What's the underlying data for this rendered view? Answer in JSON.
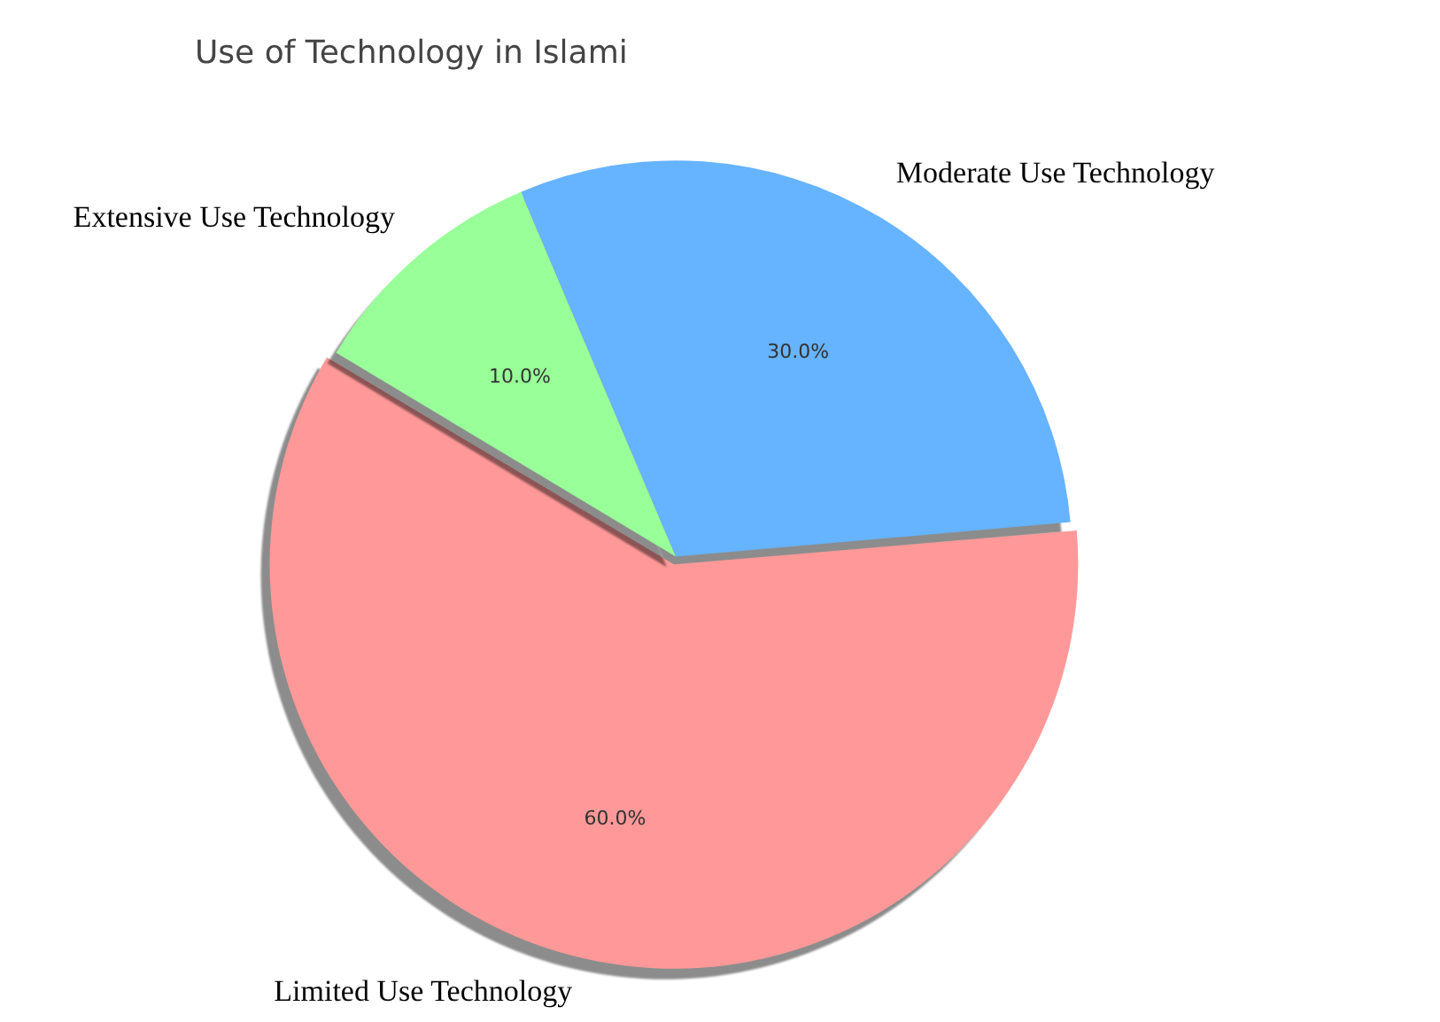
{
  "chart_data": {
    "type": "pie",
    "title": "Use of Technology in Islami",
    "categories": [
      "Moderate Use Technology",
      "Limited Use Technology",
      "Extensive Use Technology"
    ],
    "values": [
      30,
      60,
      10
    ],
    "colors": [
      "#66b3ff",
      "#ff9999",
      "#99ff99"
    ],
    "value_labels": [
      "30.0%",
      "60.0%",
      "10.0%"
    ],
    "legend": false
  }
}
